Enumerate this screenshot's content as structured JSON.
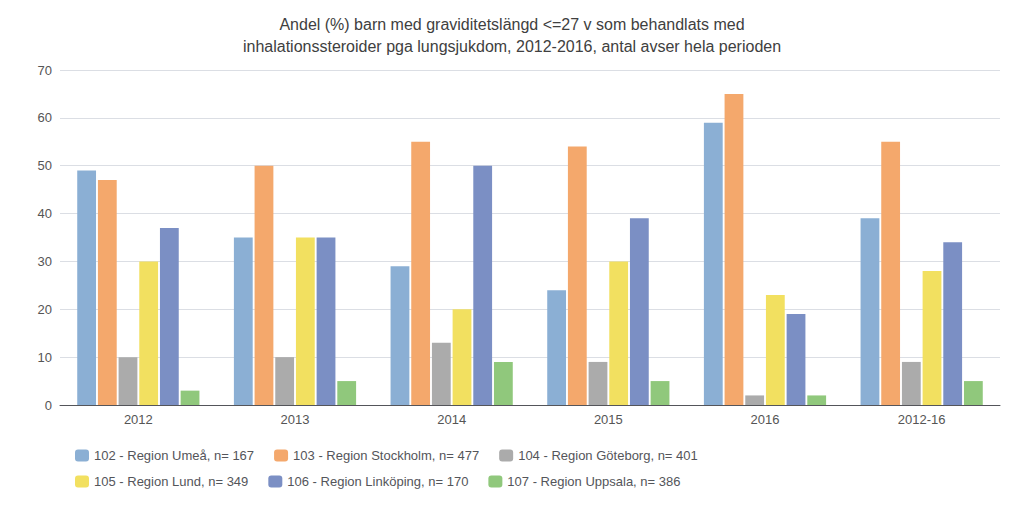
{
  "chart_data": {
    "type": "bar",
    "title": "Andel (%) barn med graviditetslängd <=27 v som behandlats med\ninhalationssteroider pga lungsjukdom, 2012-2016, antal avser hela perioden",
    "categories": [
      "2012",
      "2013",
      "2014",
      "2015",
      "2016",
      "2012-16"
    ],
    "series": [
      {
        "name": "102 - Region Umeå, n= 167",
        "color": "#8BAFD4",
        "values": [
          49,
          35,
          29,
          24,
          59,
          39
        ]
      },
      {
        "name": "103 - Region Stockholm, n= 477",
        "color": "#F4A86C",
        "values": [
          47,
          50,
          55,
          54,
          65,
          55
        ]
      },
      {
        "name": "104 - Region Göteborg, n= 401",
        "color": "#ABABAB",
        "values": [
          10,
          10,
          13,
          9,
          2,
          9
        ]
      },
      {
        "name": "105 - Region Lund, n= 349",
        "color": "#F2E060",
        "values": [
          30,
          35,
          20,
          30,
          23,
          28
        ]
      },
      {
        "name": "106 - Region Linköping, n= 170",
        "color": "#7B8FC4",
        "values": [
          37,
          35,
          50,
          39,
          19,
          34
        ]
      },
      {
        "name": "107 - Region Uppsala, n= 386",
        "color": "#90C87C",
        "values": [
          3,
          5,
          9,
          5,
          2,
          5
        ]
      }
    ],
    "ylim": [
      0,
      70
    ],
    "yticks": [
      0,
      10,
      20,
      30,
      40,
      50,
      60,
      70
    ],
    "grid": true,
    "legend": "bottom"
  }
}
